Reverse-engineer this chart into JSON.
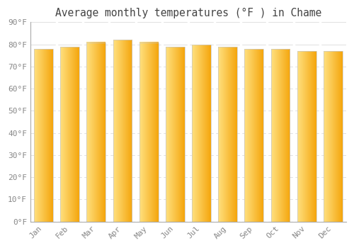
{
  "title": "Average monthly temperatures (°F ) in Chame",
  "months": [
    "Jan",
    "Feb",
    "Mar",
    "Apr",
    "May",
    "Jun",
    "Jul",
    "Aug",
    "Sep",
    "Oct",
    "Nov",
    "Dec"
  ],
  "values": [
    78,
    79,
    81,
    82,
    81,
    79,
    80,
    79,
    78,
    78,
    77,
    77
  ],
  "ylim": [
    0,
    90
  ],
  "yticks": [
    0,
    10,
    20,
    30,
    40,
    50,
    60,
    70,
    80,
    90
  ],
  "ytick_labels": [
    "0°F",
    "10°F",
    "20°F",
    "30°F",
    "40°F",
    "50°F",
    "60°F",
    "70°F",
    "80°F",
    "90°F"
  ],
  "bar_color_left": "#FFE080",
  "bar_color_right": "#F5A800",
  "bar_edge_color": "#C8C8C8",
  "background_color": "#FFFFFF",
  "grid_color": "#E0E0E0",
  "title_color": "#444444",
  "tick_color": "#888888",
  "title_fontsize": 10.5,
  "tick_fontsize": 8.0
}
